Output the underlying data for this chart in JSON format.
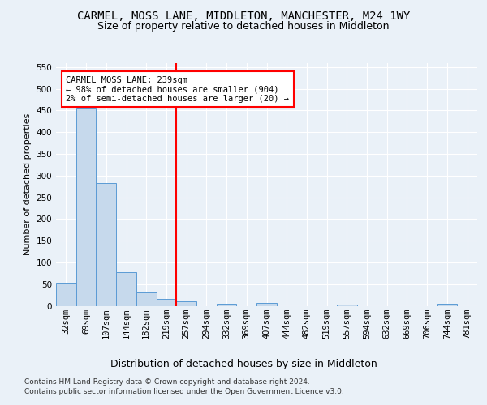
{
  "title": "CARMEL, MOSS LANE, MIDDLETON, MANCHESTER, M24 1WY",
  "subtitle": "Size of property relative to detached houses in Middleton",
  "xlabel": "Distribution of detached houses by size in Middleton",
  "ylabel": "Number of detached properties",
  "bin_labels": [
    "32sqm",
    "69sqm",
    "107sqm",
    "144sqm",
    "182sqm",
    "219sqm",
    "257sqm",
    "294sqm",
    "332sqm",
    "369sqm",
    "407sqm",
    "444sqm",
    "482sqm",
    "519sqm",
    "557sqm",
    "594sqm",
    "632sqm",
    "669sqm",
    "706sqm",
    "744sqm",
    "781sqm"
  ],
  "bar_heights": [
    52,
    457,
    282,
    78,
    30,
    15,
    10,
    0,
    5,
    0,
    6,
    0,
    0,
    0,
    3,
    0,
    0,
    0,
    0,
    4,
    0
  ],
  "bar_color": "#c6d9ec",
  "bar_edge_color": "#5b9bd5",
  "vline_x_index": 6,
  "vline_color": "red",
  "annotation_text": "CARMEL MOSS LANE: 239sqm\n← 98% of detached houses are smaller (904)\n2% of semi-detached houses are larger (20) →",
  "annotation_box_color": "white",
  "annotation_box_edge": "red",
  "ylim": [
    0,
    560
  ],
  "yticks": [
    0,
    50,
    100,
    150,
    200,
    250,
    300,
    350,
    400,
    450,
    500,
    550
  ],
  "footer1": "Contains HM Land Registry data © Crown copyright and database right 2024.",
  "footer2": "Contains public sector information licensed under the Open Government Licence v3.0.",
  "bg_color": "#eaf1f8",
  "plot_bg_color": "#eaf1f8",
  "title_fontsize": 10,
  "subtitle_fontsize": 9,
  "tick_fontsize": 7.5,
  "ylabel_fontsize": 8,
  "xlabel_fontsize": 9,
  "bar_width": 1.0
}
